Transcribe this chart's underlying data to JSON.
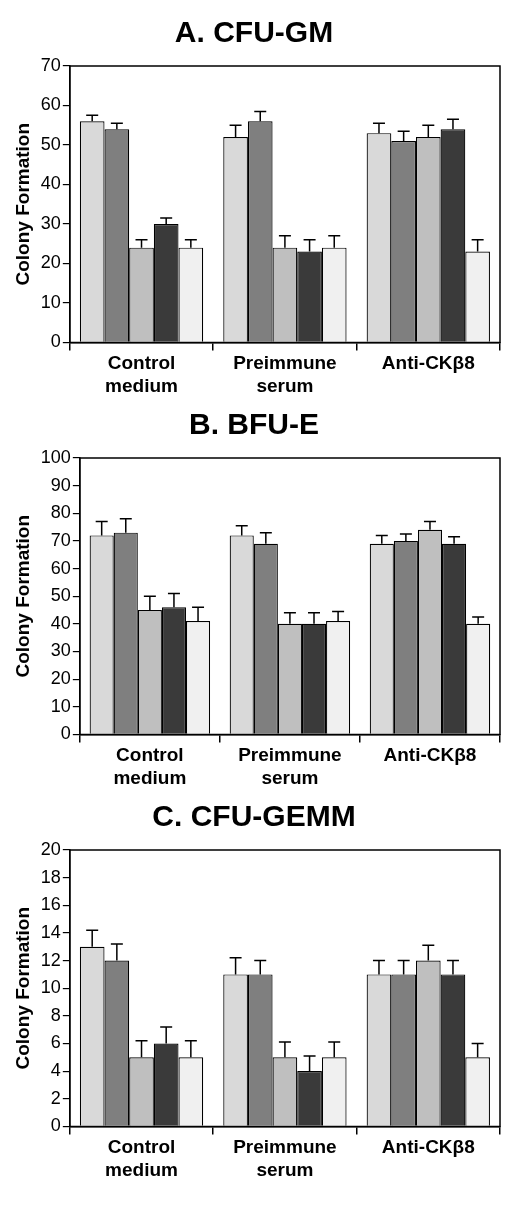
{
  "chart_data": [
    {
      "type": "bar",
      "title": "A. CFU-GM",
      "ylabel": "Colony Formation",
      "categories": [
        "Control medium",
        "Preimmune serum",
        "Anti-CKβ8"
      ],
      "ylim": [
        0,
        70
      ],
      "yticks": [
        0,
        10,
        20,
        30,
        40,
        50,
        60,
        70
      ],
      "grid": false,
      "legend": false,
      "series": [
        {
          "color": "#d9d9d9",
          "values": [
            56,
            52,
            53
          ],
          "errors": [
            [
              56,
              57.5
            ],
            [
              52,
              55
            ],
            [
              53,
              55.5
            ]
          ]
        },
        {
          "color": "#7f7f7f",
          "values": [
            54,
            56,
            51
          ],
          "errors": [
            [
              54,
              55.5
            ],
            [
              56,
              58.5
            ],
            [
              51,
              53.5
            ]
          ]
        },
        {
          "color": "#bfbfbf",
          "values": [
            24,
            24,
            52
          ],
          "errors": [
            [
              24,
              26
            ],
            [
              24,
              27
            ],
            [
              52,
              55
            ]
          ]
        },
        {
          "color": "#3a3a3a",
          "values": [
            30,
            23,
            54
          ],
          "errors": [
            [
              30,
              31.5
            ],
            [
              23,
              26
            ],
            [
              54,
              56.5
            ]
          ]
        },
        {
          "color": "#f0f0f0",
          "values": [
            24,
            24,
            23
          ],
          "errors": [
            [
              24,
              26
            ],
            [
              24,
              27
            ],
            [
              23,
              26
            ]
          ]
        }
      ]
    },
    {
      "type": "bar",
      "title": "B. BFU-E",
      "ylabel": "Colony Formation",
      "categories": [
        "Control medium",
        "Preimmune serum",
        "Anti-CKβ8"
      ],
      "ylim": [
        0,
        100
      ],
      "yticks": [
        0,
        10,
        20,
        30,
        40,
        50,
        60,
        70,
        80,
        90,
        100
      ],
      "grid": false,
      "legend": false,
      "series": [
        {
          "color": "#d9d9d9",
          "values": [
            72,
            72,
            69
          ],
          "errors": [
            [
              72,
              77
            ],
            [
              72,
              75.5
            ],
            [
              69,
              72
            ]
          ]
        },
        {
          "color": "#7f7f7f",
          "values": [
            73,
            69,
            70
          ],
          "errors": [
            [
              73,
              78
            ],
            [
              69,
              73
            ],
            [
              70,
              72.5
            ]
          ]
        },
        {
          "color": "#bfbfbf",
          "values": [
            45,
            40,
            74
          ],
          "errors": [
            [
              45,
              50
            ],
            [
              40,
              44
            ],
            [
              74,
              77
            ]
          ]
        },
        {
          "color": "#3a3a3a",
          "values": [
            46,
            40,
            69
          ],
          "errors": [
            [
              46,
              51
            ],
            [
              40,
              44
            ],
            [
              69,
              71.5
            ]
          ]
        },
        {
          "color": "#f0f0f0",
          "values": [
            41,
            41,
            40
          ],
          "errors": [
            [
              41,
              46
            ],
            [
              41,
              44.5
            ],
            [
              40,
              42.5
            ]
          ]
        }
      ]
    },
    {
      "type": "bar",
      "title": "C. CFU-GEMM",
      "ylabel": "Colony Formation",
      "categories": [
        "Control medium",
        "Preimmune serum",
        "Anti-CKβ8"
      ],
      "ylim": [
        0,
        20
      ],
      "yticks": [
        0,
        2,
        4,
        6,
        8,
        10,
        12,
        14,
        16,
        18,
        20
      ],
      "grid": false,
      "legend": false,
      "series": [
        {
          "color": "#d9d9d9",
          "values": [
            13,
            11,
            11
          ],
          "errors": [
            [
              13,
              14.2
            ],
            [
              11,
              12.2
            ],
            [
              11,
              12
            ]
          ]
        },
        {
          "color": "#7f7f7f",
          "values": [
            12,
            11,
            11
          ],
          "errors": [
            [
              12,
              13.2
            ],
            [
              11,
              12
            ],
            [
              11,
              12
            ]
          ]
        },
        {
          "color": "#bfbfbf",
          "values": [
            5,
            5,
            12
          ],
          "errors": [
            [
              5,
              6.2
            ],
            [
              5,
              6.1
            ],
            [
              12,
              13.1
            ]
          ]
        },
        {
          "color": "#3a3a3a",
          "values": [
            6,
            4,
            11
          ],
          "errors": [
            [
              6,
              7.2
            ],
            [
              4,
              5.1
            ],
            [
              11,
              12
            ]
          ]
        },
        {
          "color": "#f0f0f0",
          "values": [
            5,
            5,
            5
          ],
          "errors": [
            [
              5,
              6.2
            ],
            [
              5,
              6.1
            ],
            [
              5,
              6
            ]
          ]
        }
      ]
    }
  ]
}
